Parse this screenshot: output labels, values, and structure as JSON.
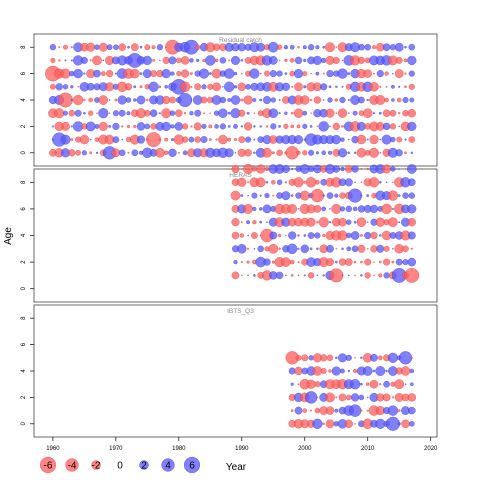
{
  "chart_data": {
    "type": "scatter",
    "ylabel": "Age",
    "xlabel": "Year",
    "x_ticks": [
      1960,
      1970,
      1980,
      1990,
      2000,
      2010,
      2020
    ],
    "y_ticks": [
      0,
      2,
      4,
      6,
      8
    ],
    "xlim": [
      1957,
      2021
    ],
    "colors": {
      "positive": "#5555ff",
      "negative": "#ff5b5b",
      "panel_border": "#444444",
      "title": "#888888"
    },
    "legend": {
      "values": [
        -6,
        -4,
        -2,
        0,
        2,
        4,
        6
      ],
      "labels": [
        "-6",
        "-4",
        "-2",
        "0",
        "2",
        "4",
        "6"
      ],
      "title": "Year"
    },
    "panels": [
      {
        "title": "Residual catch",
        "years": [
          1960,
          2017
        ],
        "ages": [
          0,
          8
        ],
        "ylim": [
          -1,
          9
        ],
        "seed": 11,
        "big_points": [
          [
            1960,
            6,
            -5.5
          ],
          [
            1962,
            4,
            -5
          ],
          [
            1961,
            1,
            4.5
          ],
          [
            1973,
            7,
            5
          ],
          [
            1979,
            8,
            -5
          ],
          [
            1980,
            5,
            5.5
          ],
          [
            1981,
            4,
            4.5
          ],
          [
            1976,
            1,
            -5
          ],
          [
            1982,
            8,
            5
          ],
          [
            1969,
            0,
            4
          ],
          [
            1998,
            0,
            -4
          ],
          [
            2001,
            1,
            3.5
          ]
        ]
      },
      {
        "title": "HERAS",
        "years": [
          1989,
          2017
        ],
        "ages": [
          1,
          9
        ],
        "ylim": [
          -1,
          9
        ],
        "seed": 23,
        "big_points": [
          [
            2017,
            1,
            -5
          ],
          [
            2015,
            1,
            5
          ],
          [
            2008,
            7,
            4.5
          ],
          [
            1994,
            4,
            -4
          ],
          [
            2002,
            7,
            -4
          ],
          [
            2005,
            1,
            -4.5
          ]
        ]
      },
      {
        "title": "IBTS_Q3",
        "years": [
          1998,
          2017
        ],
        "ages": [
          0,
          5
        ],
        "ylim": [
          -1,
          9
        ],
        "seed": 37,
        "big_points": [
          [
            1998,
            5,
            -4
          ],
          [
            2016,
            5,
            4
          ],
          [
            2014,
            0,
            4.5
          ],
          [
            2001,
            2,
            3.5
          ],
          [
            2008,
            1,
            3.5
          ]
        ]
      }
    ]
  }
}
